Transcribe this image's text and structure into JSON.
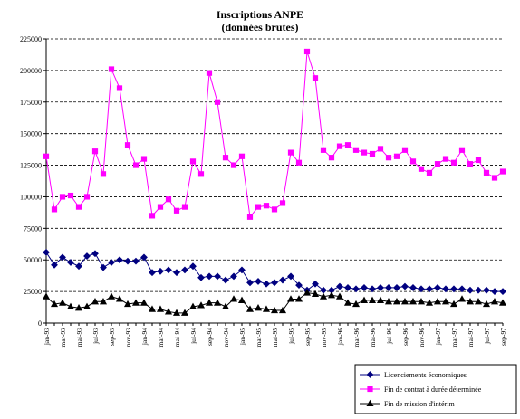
{
  "chart_data": {
    "type": "line",
    "title": "Inscriptions ANPE",
    "subtitle": "(données brutes)",
    "ylim": [
      0,
      225000
    ],
    "y_ticks": [
      0,
      25000,
      50000,
      75000,
      100000,
      125000,
      150000,
      175000,
      200000,
      225000
    ],
    "grid": "horizontal dashed",
    "legend_position": "bottom-right",
    "x": [
      "jan-93",
      "févr-93",
      "mar-93",
      "avr-93",
      "mai-93",
      "juin-93",
      "jul-93",
      "août-93",
      "sep-93",
      "oct-93",
      "nov-93",
      "déc-93",
      "jan-94",
      "févr-94",
      "mar-94",
      "avr-94",
      "mai-94",
      "juin-94",
      "jul-94",
      "août-94",
      "sep-94",
      "oct-94",
      "nov-94",
      "déc-94",
      "jan-95",
      "févr-95",
      "mar-95",
      "avr-95",
      "mai-95",
      "juin-95",
      "jul-95",
      "août-95",
      "sep-95",
      "oct-95",
      "nov-95",
      "déc-95",
      "jan-96",
      "févr-96",
      "mar-96",
      "avr-96",
      "mai-96",
      "juin-96",
      "jul-96",
      "août-96",
      "sep-96",
      "oct-96",
      "nov-96",
      "déc-96",
      "jan-97",
      "févr-97",
      "mar-97",
      "avr-97",
      "mai-97",
      "juin-97",
      "jul-97",
      "août-97",
      "sep-97"
    ],
    "x_tick_labels": [
      "jan-93",
      "mar-93",
      "mai-93",
      "jul-93",
      "sep-93",
      "nov-93",
      "jan-94",
      "mar-94",
      "mai-94",
      "jul-94",
      "sep-94",
      "nov-94",
      "jan-95",
      "mar-95",
      "mai-95",
      "jul-95",
      "sep-95",
      "nov-95",
      "jan-96",
      "mar-96",
      "mai-96",
      "jul-96",
      "sep-96",
      "nov-96",
      "jan-97",
      "mar-97",
      "mai-97",
      "jul-97",
      "sep-97"
    ],
    "series": [
      {
        "name": "Licenciements économiques",
        "color": "#000080",
        "marker": "diamond",
        "values": [
          56000,
          46000,
          52000,
          48000,
          45000,
          53000,
          55000,
          44000,
          48000,
          50000,
          49000,
          49000,
          52000,
          40000,
          41000,
          42000,
          40000,
          42000,
          45000,
          36000,
          37000,
          37000,
          34000,
          37000,
          42000,
          32000,
          33000,
          31000,
          32000,
          34000,
          37000,
          30000,
          26000,
          31000,
          26000,
          26000,
          29000,
          28000,
          27000,
          28000,
          27000,
          28000,
          28000,
          28000,
          29000,
          28000,
          27000,
          27000,
          28000,
          27000,
          27000,
          27000,
          26000,
          26000,
          26000,
          25000,
          25000
        ]
      },
      {
        "name": "Fin de contrat à durée déterminée",
        "color": "#FF00FF",
        "marker": "square",
        "values": [
          132000,
          90000,
          100000,
          101000,
          92000,
          100000,
          136000,
          118000,
          201000,
          186000,
          141000,
          125000,
          130000,
          85000,
          92000,
          98000,
          89000,
          92000,
          128000,
          118000,
          198000,
          175000,
          131000,
          125000,
          132000,
          84000,
          92000,
          93000,
          90000,
          95000,
          135000,
          127000,
          215000,
          194000,
          137000,
          131000,
          140000,
          141000,
          137000,
          135000,
          134000,
          138000,
          131000,
          132000,
          137000,
          128000,
          122000,
          119000,
          126000,
          130000,
          127000,
          137000,
          126000,
          129000,
          119000,
          115000,
          120000
        ]
      },
      {
        "name": "Fin de mission d'intérim",
        "color": "#000000",
        "marker": "triangle",
        "values": [
          21000,
          15000,
          16000,
          13000,
          12000,
          13000,
          17000,
          17000,
          21000,
          19000,
          15000,
          16000,
          16000,
          11000,
          11000,
          9000,
          8000,
          8000,
          13000,
          14000,
          16000,
          16000,
          13000,
          19000,
          18000,
          11000,
          12000,
          11000,
          10000,
          10000,
          19000,
          19000,
          24000,
          23000,
          21000,
          22000,
          21000,
          16000,
          15000,
          18000,
          18000,
          18000,
          17000,
          17000,
          17000,
          17000,
          17000,
          16000,
          17000,
          17000,
          15000,
          19000,
          17000,
          17000,
          15000,
          17000,
          16000
        ]
      }
    ]
  }
}
